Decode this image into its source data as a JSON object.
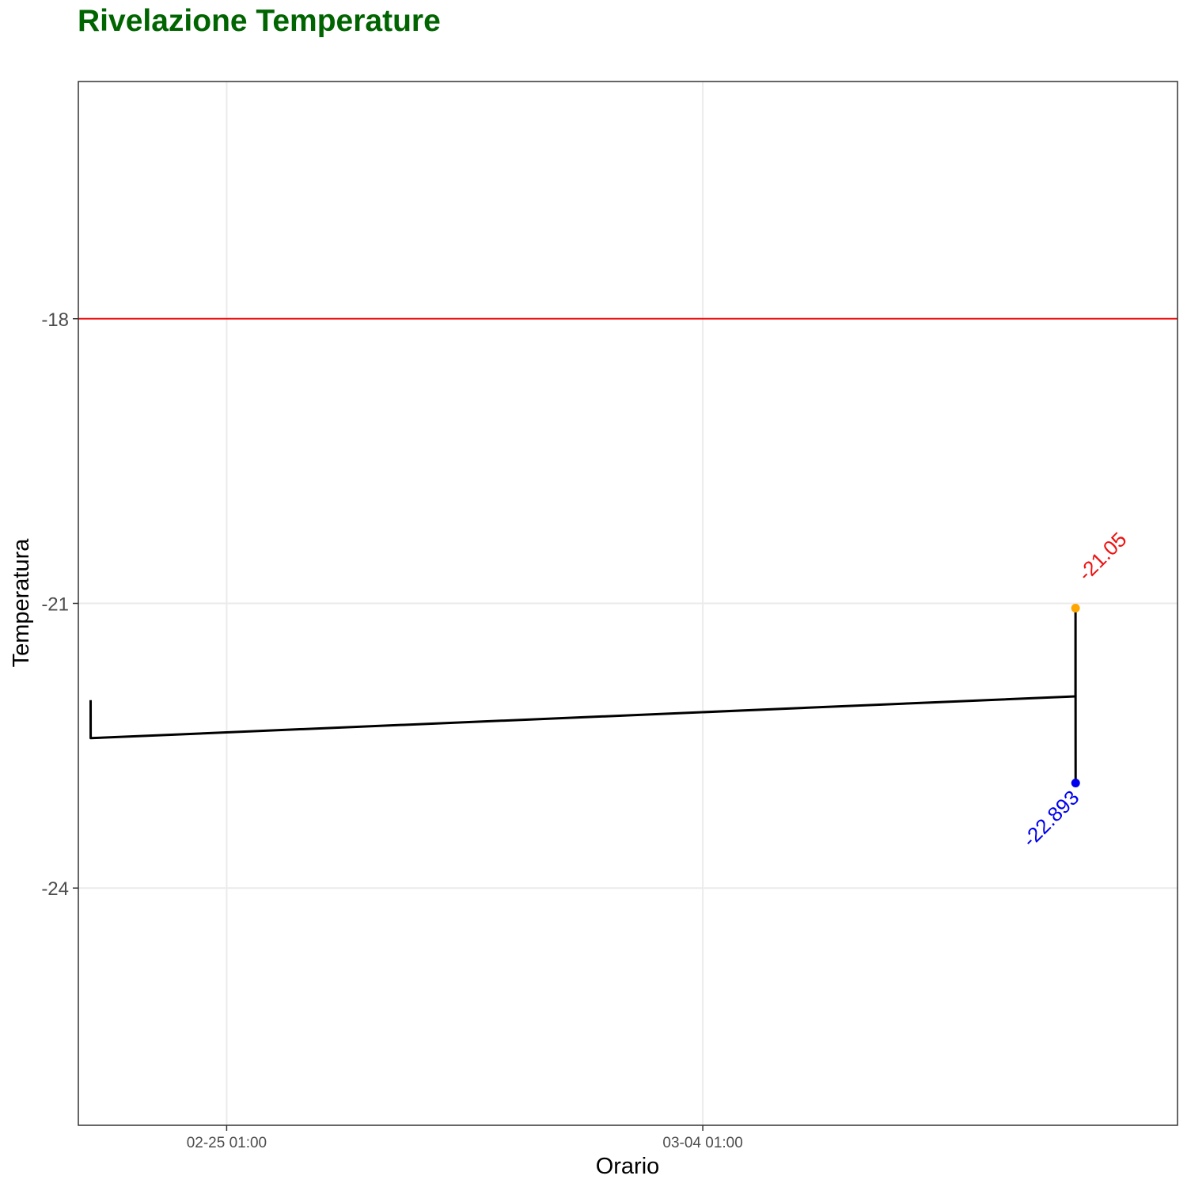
{
  "chart_data": {
    "type": "line",
    "title": "Rivelazione Temperature",
    "xlabel": "Orario",
    "ylabel": "Temperatura",
    "x_ticks": [
      {
        "value": "2021-02-25 01:00",
        "label": "02-25  01:00"
      },
      {
        "value": "2021-03-04 01:00",
        "label": "03-04  01:00"
      }
    ],
    "xlim": [
      "2021-02-22 20:40",
      "2021-03-11 00:30"
    ],
    "y_ticks": [
      -18,
      -21,
      -24
    ],
    "ylim": [
      -26.5,
      -15.5
    ],
    "grid": true,
    "threshold": {
      "value": -18,
      "color": "#ee1111"
    },
    "series": [
      {
        "color": "#000000",
        "points": [
          {
            "x": "2021-02-23 01:00",
            "y": -22.02
          },
          {
            "x": "2021-02-23 01:01",
            "y": -22.42
          },
          {
            "x": "2021-03-09 12:30",
            "y": -21.98
          },
          {
            "x": "2021-03-09 12:31",
            "y": -21.05
          },
          {
            "x": "2021-03-09 12:32",
            "y": -22.4
          },
          {
            "x": "2021-03-09 12:33",
            "y": -22.893
          }
        ]
      }
    ],
    "max_point": {
      "x": "2021-03-09 12:31",
      "y": -21.05,
      "label": "-21.05",
      "marker_color": "#ffa500",
      "label_color": "#ee1111"
    },
    "min_point": {
      "x": "2021-03-09 12:33",
      "y": -22.893,
      "label": "-22.893",
      "marker_color": "#0000ee",
      "label_color": "#0000ee"
    },
    "title_color": "#006400"
  }
}
